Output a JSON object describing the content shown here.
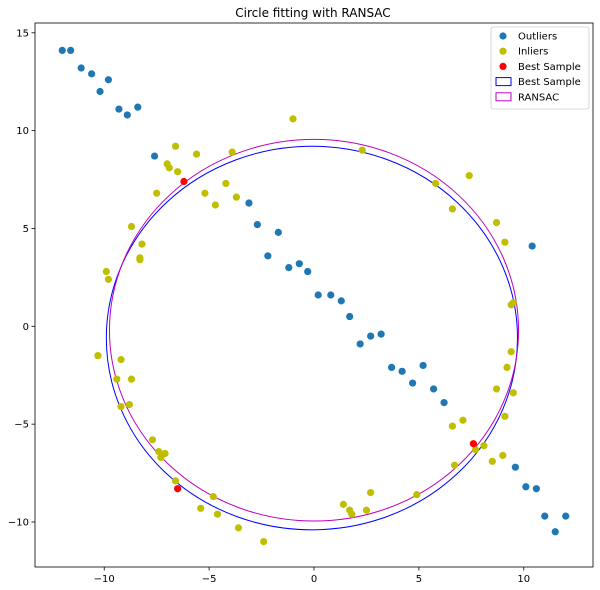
{
  "chart_data": {
    "type": "scatter",
    "title": "Circle fitting with RANSAC",
    "xlabel": "",
    "ylabel": "",
    "xlim": [
      -13.3,
      13.3
    ],
    "ylim": [
      -12.3,
      15.5
    ],
    "xticks": [
      -10,
      -5,
      0,
      5,
      10
    ],
    "yticks": [
      -10,
      -5,
      0,
      5,
      10,
      15
    ],
    "xtick_labels": [
      "−10",
      "−5",
      "0",
      "5",
      "10"
    ],
    "ytick_labels": [
      "−10",
      "−5",
      "0",
      "5",
      "10",
      "15"
    ],
    "grid": false,
    "legend_position": "top-right",
    "series": [
      {
        "name": "Outliers",
        "kind": "points",
        "color": "#1f77b4",
        "points": [
          [
            -12.0,
            14.1
          ],
          [
            -11.6,
            14.1
          ],
          [
            -11.1,
            13.2
          ],
          [
            -10.6,
            12.9
          ],
          [
            -10.2,
            12.0
          ],
          [
            -9.8,
            12.6
          ],
          [
            -9.3,
            11.1
          ],
          [
            -8.9,
            10.8
          ],
          [
            -8.4,
            11.2
          ],
          [
            -7.6,
            8.7
          ],
          [
            -3.1,
            6.3
          ],
          [
            -2.7,
            5.2
          ],
          [
            -1.7,
            4.8
          ],
          [
            -2.2,
            3.6
          ],
          [
            -1.2,
            3.0
          ],
          [
            -0.7,
            3.2
          ],
          [
            -0.3,
            2.8
          ],
          [
            0.2,
            1.6
          ],
          [
            0.8,
            1.6
          ],
          [
            1.3,
            1.3
          ],
          [
            1.7,
            0.5
          ],
          [
            2.2,
            -0.9
          ],
          [
            2.7,
            -0.5
          ],
          [
            3.2,
            -0.4
          ],
          [
            3.7,
            -2.1
          ],
          [
            4.2,
            -2.3
          ],
          [
            4.7,
            -2.9
          ],
          [
            5.2,
            -2.0
          ],
          [
            5.7,
            -3.2
          ],
          [
            6.2,
            -3.9
          ],
          [
            9.6,
            -7.2
          ],
          [
            10.1,
            -8.2
          ],
          [
            10.6,
            -8.3
          ],
          [
            11.0,
            -9.7
          ],
          [
            11.5,
            -10.5
          ],
          [
            12.0,
            -9.7
          ],
          [
            10.4,
            4.1
          ]
        ]
      },
      {
        "name": "Inliers",
        "kind": "points",
        "color": "#bfbf00",
        "points": [
          [
            -6.6,
            9.2
          ],
          [
            -5.6,
            8.8
          ],
          [
            -7.0,
            8.3
          ],
          [
            -6.9,
            8.1
          ],
          [
            -6.5,
            7.9
          ],
          [
            -4.2,
            7.3
          ],
          [
            -7.5,
            6.8
          ],
          [
            -5.2,
            6.8
          ],
          [
            -4.7,
            6.2
          ],
          [
            -3.7,
            6.6
          ],
          [
            -3.9,
            8.9
          ],
          [
            -1.0,
            10.6
          ],
          [
            -8.7,
            5.1
          ],
          [
            -8.2,
            4.2
          ],
          [
            -8.3,
            3.5
          ],
          [
            -8.3,
            3.4
          ],
          [
            -9.9,
            2.8
          ],
          [
            -9.8,
            2.4
          ],
          [
            -10.3,
            -1.5
          ],
          [
            -9.2,
            -1.7
          ],
          [
            -9.4,
            -2.7
          ],
          [
            -8.7,
            -2.7
          ],
          [
            -9.2,
            -4.1
          ],
          [
            -8.8,
            -4.0
          ],
          [
            -7.7,
            -5.8
          ],
          [
            -7.4,
            -6.4
          ],
          [
            -7.3,
            -6.7
          ],
          [
            -7.1,
            -6.5
          ],
          [
            -6.6,
            -7.9
          ],
          [
            -4.8,
            -8.7
          ],
          [
            -5.4,
            -9.3
          ],
          [
            -4.6,
            -9.6
          ],
          [
            -3.6,
            -10.3
          ],
          [
            -2.4,
            -11.0
          ],
          [
            1.4,
            -9.1
          ],
          [
            1.7,
            -9.4
          ],
          [
            1.8,
            -9.6
          ],
          [
            2.5,
            -9.4
          ],
          [
            2.7,
            -8.5
          ],
          [
            4.9,
            -8.6
          ],
          [
            6.7,
            -7.1
          ],
          [
            6.6,
            -5.1
          ],
          [
            7.1,
            -4.8
          ],
          [
            7.7,
            -6.3
          ],
          [
            8.1,
            -6.1
          ],
          [
            8.5,
            -6.9
          ],
          [
            9.0,
            -6.6
          ],
          [
            8.7,
            -3.2
          ],
          [
            9.1,
            -4.6
          ],
          [
            9.5,
            -3.4
          ],
          [
            9.4,
            -1.3
          ],
          [
            9.2,
            -2.1
          ],
          [
            9.4,
            1.1
          ],
          [
            9.5,
            1.2
          ],
          [
            9.1,
            4.3
          ],
          [
            8.7,
            5.3
          ],
          [
            7.4,
            7.7
          ],
          [
            6.6,
            6.0
          ],
          [
            5.8,
            7.3
          ],
          [
            2.3,
            9.0
          ]
        ]
      },
      {
        "name": "Best Sample",
        "kind": "points",
        "color": "#ff0000",
        "points": [
          [
            -6.2,
            7.4
          ],
          [
            -6.5,
            -8.3
          ],
          [
            7.6,
            -6.0
          ]
        ]
      },
      {
        "name": "Best Sample",
        "kind": "circle",
        "color": "#0000ff",
        "center": [
          -0.1,
          -0.6
        ],
        "radius": 9.8
      },
      {
        "name": "RANSAC",
        "kind": "circle",
        "color": "#bf00bf",
        "center": [
          0.0,
          -0.2
        ],
        "radius": 9.75
      }
    ]
  }
}
